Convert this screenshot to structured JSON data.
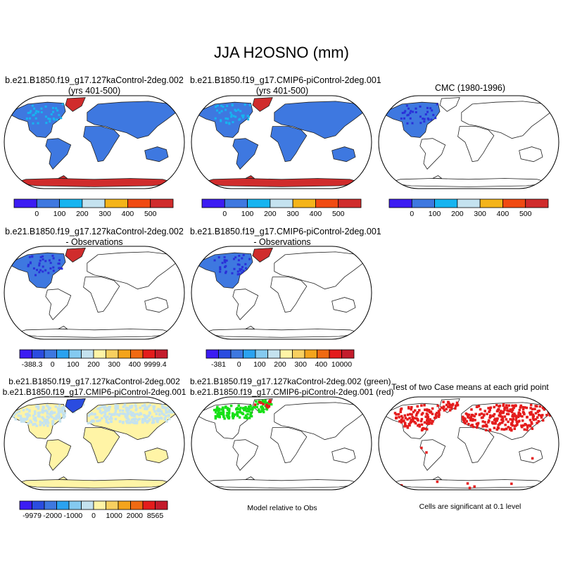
{
  "figure": {
    "title": "JJA H2OSNO (mm)"
  },
  "colors": {
    "abs_scale": [
      "#3c1cf3",
      "#3e78e0",
      "#16b4f0",
      "#c4e2ef",
      "#f4b41a",
      "#f04a12",
      "#d02c2c"
    ],
    "diff_scale": [
      "#3c1cf3",
      "#2a4ce0",
      "#3e78e0",
      "#2aa2f0",
      "#84caf0",
      "#c4e2ef",
      "#fff4a6",
      "#f8d060",
      "#f4a41c",
      "#f06a12",
      "#e41c1c",
      "#c41c2c"
    ],
    "land_blue": "#3e78e0",
    "greenland_red": "#d02c2c",
    "pale_yellow": "#fff4a6",
    "pale_blue": "#c4e2ef",
    "sig_green": "#16e016",
    "sig_red": "#e41c1c",
    "coast": "#222222"
  },
  "panels": [
    {
      "id": "ctl",
      "title_line1": "b.e21.B1850.f19_g17.127kaControl-2deg.002",
      "title_line2": "(yrs 401-500)",
      "style": "abs",
      "colorbar": {
        "scale": "abs",
        "labels": [
          "0",
          "100",
          "200",
          "300",
          "400",
          "500"
        ]
      }
    },
    {
      "id": "pi",
      "title_line1": "b.e21.B1850.f19_g17.CMIP6-piControl-2deg.001",
      "title_line2": "(yrs 401-500)",
      "style": "abs",
      "colorbar": {
        "scale": "abs",
        "labels": [
          "0",
          "100",
          "200",
          "300",
          "400",
          "500"
        ]
      }
    },
    {
      "id": "obs",
      "title_line1": "CMC (1980-1996)",
      "title_line2": "",
      "style": "obs",
      "colorbar": {
        "scale": "abs",
        "labels": [
          "0",
          "100",
          "200",
          "300",
          "400",
          "500"
        ]
      }
    },
    {
      "id": "ctl_minus_obs",
      "title_line1": "b.e21.B1850.f19_g17.127kaControl-2deg.002",
      "title_line2": "- Observations",
      "style": "diff",
      "colorbar": {
        "scale": "diff",
        "labels": [
          "-388.3",
          "0",
          "100",
          "200",
          "300",
          "400",
          "9999.4"
        ]
      }
    },
    {
      "id": "pi_minus_obs",
      "title_line1": "b.e21.B1850.f19_g17.CMIP6-piControl-2deg.001",
      "title_line2": "- Observations",
      "style": "diff",
      "colorbar": {
        "scale": "diff",
        "labels": [
          "-381",
          "0",
          "100",
          "200",
          "300",
          "400",
          "10000"
        ]
      }
    },
    {
      "id": "ctl_minus_pi",
      "title_line1": "b.e21.B1850.f19_g17.127kaControl-2deg.002",
      "title_line2": "b.e21.B1850.f19_g17.CMIP6-piControl-2deg.001",
      "style": "yellow",
      "colorbar": {
        "scale": "diff",
        "labels": [
          "-9979",
          "-2000",
          "-1000",
          "0",
          "1000",
          "2000",
          "8565"
        ]
      }
    },
    {
      "id": "rel_obs",
      "title_line1": "b.e21.B1850.f19_g17.127kaControl-2deg.002 (green)",
      "title_line2": "b.e21.B1850.f19_g17.CMIP6-piControl-2deg.001 (red)",
      "style": "green",
      "caption": "Model relative to Obs"
    },
    {
      "id": "ttest",
      "title_line1": "Test of two Case means at each grid point",
      "title_line2": "",
      "style": "red",
      "caption": "Cells are significant at 0.1 level"
    }
  ],
  "chart_data": [
    {
      "type": "heatmap",
      "title": "b.e21.B1850.f19_g17.127kaControl-2deg.002 (yrs 401-500)",
      "colorbar_levels": [
        0,
        100,
        200,
        300,
        400,
        500
      ],
      "note": "Most land 0-100 mm; Greenland and Antarctica >500 mm"
    },
    {
      "type": "heatmap",
      "title": "b.e21.B1850.f19_g17.CMIP6-piControl-2deg.001 (yrs 401-500)",
      "colorbar_levels": [
        0,
        100,
        200,
        300,
        400,
        500
      ],
      "note": "Most land 0-100 mm; Greenland and Antarctica >500 mm"
    },
    {
      "type": "heatmap",
      "title": "CMC (1980-1996)",
      "colorbar_levels": [
        0,
        100,
        200,
        300,
        400,
        500
      ],
      "note": "Data over North America only, 0-100 mm"
    },
    {
      "type": "heatmap",
      "title": "b.e21.B1850.f19_g17.127kaControl-2deg.002 - Observations",
      "colorbar_levels": [
        -388.3,
        0,
        100,
        200,
        300,
        400,
        9999.4
      ]
    },
    {
      "type": "heatmap",
      "title": "b.e21.B1850.f19_g17.CMIP6-piControl-2deg.001 - Observations",
      "colorbar_levels": [
        -381,
        0,
        100,
        200,
        300,
        400,
        10000
      ]
    },
    {
      "type": "heatmap",
      "title": "127kaControl - CMIP6-piControl",
      "colorbar_levels": [
        -9979,
        -2000,
        -1000,
        0,
        1000,
        2000,
        8565
      ]
    },
    {
      "type": "heatmap",
      "title": "Model relative to Obs",
      "series": [
        {
          "name": "127kaControl",
          "color": "green"
        },
        {
          "name": "CMIP6-piControl",
          "color": "red"
        }
      ]
    },
    {
      "type": "heatmap",
      "title": "Test of two Case means at each grid point",
      "note": "Cells are significant at 0.1 level"
    }
  ]
}
